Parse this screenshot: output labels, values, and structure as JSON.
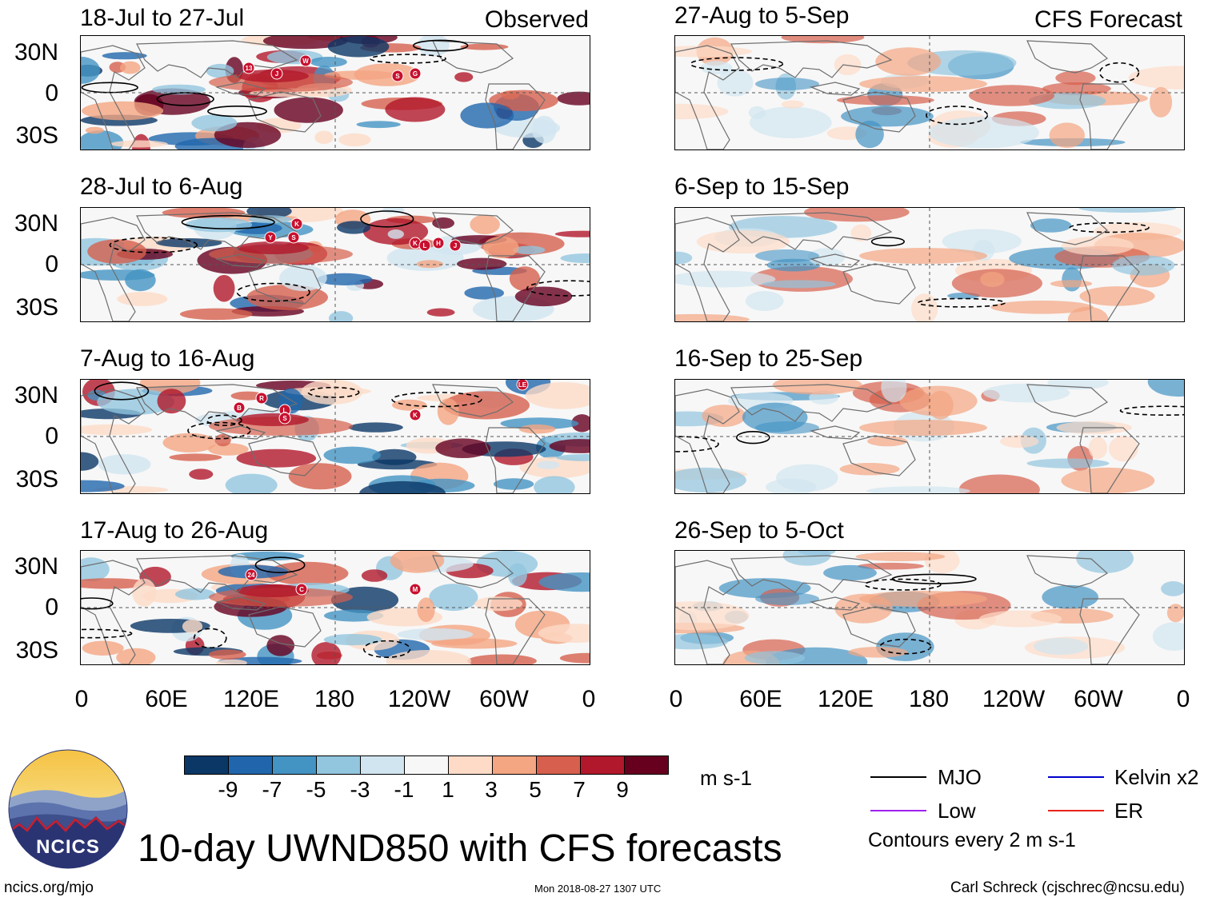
{
  "left_header": "Observed",
  "right_header": "CFS Forecast",
  "colors": {
    "neg": [
      "#0b3766",
      "#2166ac",
      "#4393c3",
      "#92c5de",
      "#d1e5f0"
    ],
    "zero": "#f7f7f7",
    "pos": [
      "#fddbc7",
      "#f4a582",
      "#d6604d",
      "#b2182b",
      "#67001f"
    ]
  },
  "panels_left": [
    {
      "title": "18-Jul to 27-Jul"
    },
    {
      "title": "28-Jul to 6-Aug"
    },
    {
      "title": "7-Aug to 16-Aug"
    },
    {
      "title": "17-Aug to 26-Aug"
    }
  ],
  "panels_right": [
    {
      "title": "27-Aug to 5-Sep"
    },
    {
      "title": "6-Sep to 15-Sep"
    },
    {
      "title": "16-Sep to 25-Sep"
    },
    {
      "title": "26-Sep to 5-Oct"
    }
  ],
  "lat_ticks": [
    "30N",
    "0",
    "30S"
  ],
  "lon_ticks": [
    "0",
    "60E",
    "120E",
    "180",
    "120W",
    "60W",
    "0"
  ],
  "colorbar": {
    "labels": [
      "-9",
      "-7",
      "-5",
      "-3",
      "-1",
      "1",
      "3",
      "5",
      "7",
      "9"
    ],
    "units": "m s-1"
  },
  "legend": {
    "mjo": "MJO",
    "kelvin": "Kelvin x2",
    "low": "Low",
    "er": "ER",
    "contours": "Contours every 2 m s-1",
    "mjo_color": "#000000",
    "kelvin_color": "#0000cc",
    "low_color": "#a020f0",
    "er_color": "#e8221b"
  },
  "logo_text": "NCICS",
  "main_title": "10-day UWND850 with CFS forecasts",
  "footer": {
    "url": "ncics.org/mjo",
    "timestamp": "Mon 2018-08-27 1307 UTC",
    "credit": "Carl Schreck (cjschrec@ncsu.edu)"
  },
  "storms": [
    [
      "1",
      "13"
    ],
    [
      "1",
      "J"
    ],
    [
      "1",
      "W"
    ],
    [
      "1",
      "S"
    ],
    [
      "1",
      "G"
    ],
    [
      "2",
      "K"
    ],
    [
      "2",
      "Y"
    ],
    [
      "2",
      "S"
    ],
    [
      "2",
      "K"
    ],
    [
      "2",
      "L"
    ],
    [
      "2",
      "H"
    ],
    [
      "2",
      "J"
    ],
    [
      "3",
      "B"
    ],
    [
      "3",
      "R"
    ],
    [
      "3",
      "L"
    ],
    [
      "3",
      "S"
    ],
    [
      "3",
      "K"
    ],
    [
      "3",
      "LE"
    ],
    [
      "4",
      "24"
    ],
    [
      "4",
      "C"
    ],
    [
      "4",
      "M"
    ]
  ]
}
